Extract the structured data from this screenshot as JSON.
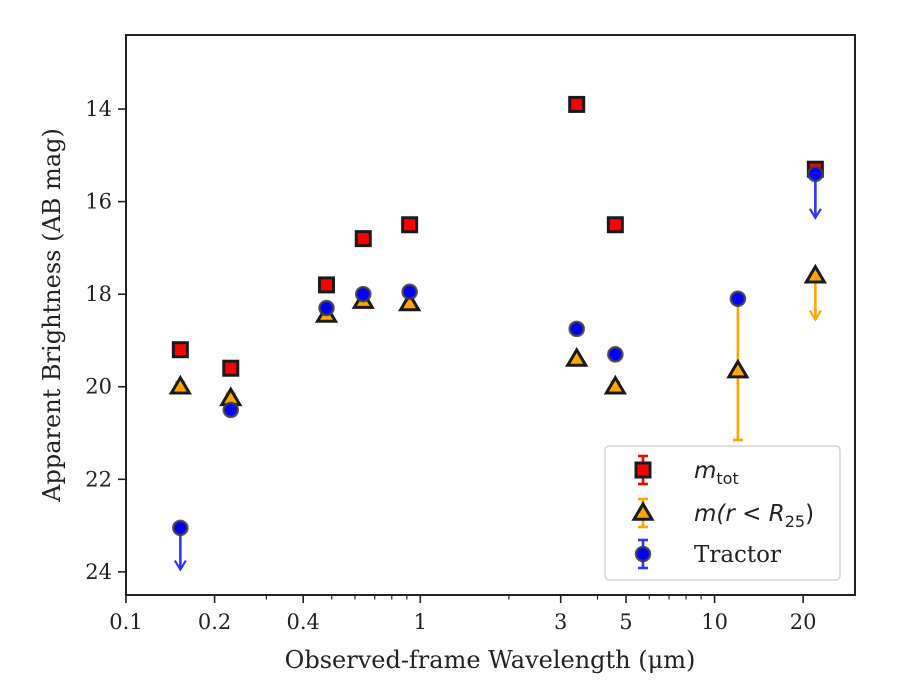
{
  "chart_data": {
    "type": "scatter",
    "xlabel": "Observed-frame Wavelength (μm)",
    "ylabel": "Apparent Brightness (AB mag)",
    "x_scale": "log",
    "xlim": [
      0.1,
      30
    ],
    "ylim": [
      24.5,
      12.4
    ],
    "y_inverted": true,
    "x_ticks": [
      {
        "value": 0.1,
        "label": "0.1"
      },
      {
        "value": 0.2,
        "label": "0.2"
      },
      {
        "value": 0.4,
        "label": "0.4"
      },
      {
        "value": 1,
        "label": "1"
      },
      {
        "value": 3,
        "label": "3"
      },
      {
        "value": 5,
        "label": "5"
      },
      {
        "value": 10,
        "label": "10"
      },
      {
        "value": 20,
        "label": "20"
      }
    ],
    "y_ticks": [
      {
        "value": 14,
        "label": "14"
      },
      {
        "value": 16,
        "label": "16"
      },
      {
        "value": 18,
        "label": "18"
      },
      {
        "value": 20,
        "label": "20"
      },
      {
        "value": 22,
        "label": "22"
      },
      {
        "value": 24,
        "label": "24"
      }
    ],
    "legend": {
      "placement": "bottom-right",
      "entries": [
        {
          "series": 0,
          "label_main": "m",
          "label_sub": "tot"
        },
        {
          "series": 1,
          "label_main": "m(r < R",
          "label_sub": "25",
          "label_tail": ")"
        },
        {
          "series": 2,
          "label_main": "Tractor"
        }
      ]
    },
    "series": [
      {
        "name": "m_tot",
        "marker": "square",
        "color": "#ff0000",
        "edge_color": "#1a1a1a",
        "errorbar_color": "#ff0000",
        "points": [
          {
            "x": 0.153,
            "y": 19.2
          },
          {
            "x": 0.227,
            "y": 19.6
          },
          {
            "x": 0.48,
            "y": 17.8
          },
          {
            "x": 0.64,
            "y": 16.8
          },
          {
            "x": 0.92,
            "y": 16.5
          },
          {
            "x": 3.4,
            "y": 13.9
          },
          {
            "x": 4.6,
            "y": 16.5
          },
          {
            "x": 22.0,
            "y": 15.3
          }
        ]
      },
      {
        "name": "m(r < R25)",
        "marker": "triangle",
        "color": "#ffa500",
        "edge_color": "#1a1a1a",
        "errorbar_color": "#ffa500",
        "points": [
          {
            "x": 0.153,
            "y": 20.0,
            "err": 0.1
          },
          {
            "x": 0.227,
            "y": 20.25,
            "err": 0.1
          },
          {
            "x": 0.48,
            "y": 18.45
          },
          {
            "x": 0.64,
            "y": 18.15
          },
          {
            "x": 0.92,
            "y": 18.2
          },
          {
            "x": 3.4,
            "y": 19.4
          },
          {
            "x": 4.6,
            "y": 20.0,
            "err": 0.1
          },
          {
            "x": 12.0,
            "y": 19.65,
            "err_lo": 1.45,
            "err_hi": 1.5
          },
          {
            "x": 22.0,
            "y": 17.6,
            "upper_limit": true,
            "arrow_to": 18.55
          }
        ]
      },
      {
        "name": "Tractor",
        "marker": "circle",
        "color": "#0000ff",
        "edge_color": "#404040",
        "errorbar_color": "#3333ff",
        "points": [
          {
            "x": 0.153,
            "y": 23.05,
            "upper_limit": true,
            "arrow_to": 23.95
          },
          {
            "x": 0.227,
            "y": 20.5
          },
          {
            "x": 0.48,
            "y": 18.3
          },
          {
            "x": 0.64,
            "y": 18.0
          },
          {
            "x": 0.92,
            "y": 17.95
          },
          {
            "x": 3.4,
            "y": 18.75
          },
          {
            "x": 4.6,
            "y": 19.3
          },
          {
            "x": 12.0,
            "y": 18.1
          },
          {
            "x": 22.0,
            "y": 15.4,
            "upper_limit": true,
            "arrow_to": 16.35
          }
        ]
      }
    ]
  }
}
